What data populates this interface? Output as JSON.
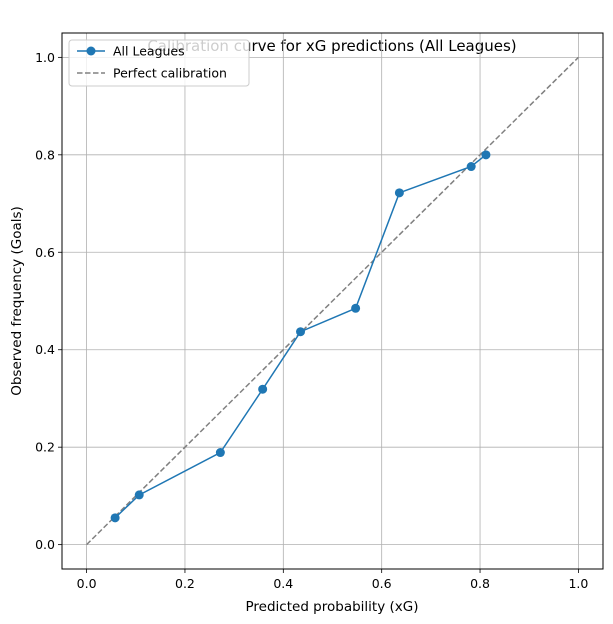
{
  "chart_data": {
    "type": "line",
    "title": "Calibration curve for xG predictions (All Leagues)",
    "xlabel": "Predicted probability (xG)",
    "ylabel": "Observed frequency (Goals)",
    "xlim": [
      -0.05,
      1.05
    ],
    "ylim": [
      -0.05,
      1.05
    ],
    "xticks": [
      0.0,
      0.2,
      0.4,
      0.6,
      0.8,
      1.0
    ],
    "yticks": [
      0.0,
      0.2,
      0.4,
      0.6,
      0.8,
      1.0
    ],
    "xtick_labels": [
      "0.0",
      "0.2",
      "0.4",
      "0.6",
      "0.8",
      "1.0"
    ],
    "ytick_labels": [
      "0.0",
      "0.2",
      "0.4",
      "0.6",
      "0.8",
      "1.0"
    ],
    "grid": true,
    "legend_position": "upper-left",
    "series": [
      {
        "name": "All Leagues",
        "color": "#1f77b4",
        "style": "solid-with-markers",
        "x": [
          0.058,
          0.107,
          0.272,
          0.358,
          0.435,
          0.547,
          0.636,
          0.782,
          0.812
        ],
        "y": [
          0.055,
          0.102,
          0.189,
          0.319,
          0.437,
          0.485,
          0.722,
          0.776,
          0.8
        ]
      },
      {
        "name": "Perfect calibration",
        "color": "#808080",
        "style": "dashed",
        "x": [
          0.0,
          1.0
        ],
        "y": [
          0.0,
          1.0
        ]
      }
    ]
  }
}
